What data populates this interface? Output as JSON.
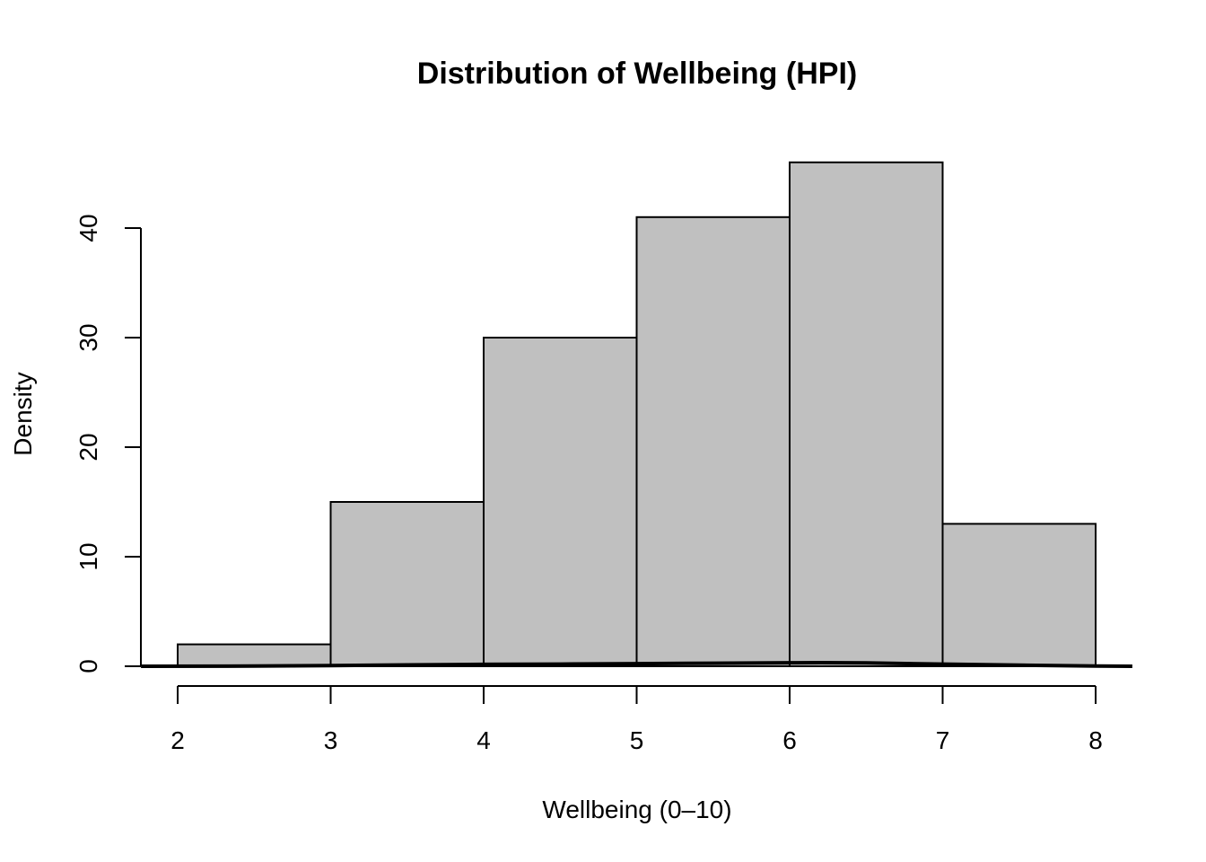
{
  "chart_data": {
    "type": "bar",
    "title": "Distribution of Wellbeing (HPI)",
    "xlabel": "Wellbeing (0–10)",
    "ylabel": "Density",
    "bins": [
      {
        "from": 2,
        "to": 3,
        "value": 2
      },
      {
        "from": 3,
        "to": 4,
        "value": 15
      },
      {
        "from": 4,
        "to": 5,
        "value": 30
      },
      {
        "from": 5,
        "to": 6,
        "value": 41
      },
      {
        "from": 6,
        "to": 7,
        "value": 46
      },
      {
        "from": 7,
        "to": 8,
        "value": 13
      }
    ],
    "x_ticks": [
      "2",
      "3",
      "4",
      "5",
      "6",
      "7",
      "8"
    ],
    "y_ticks": [
      "0",
      "10",
      "20",
      "30",
      "40"
    ],
    "xlim": [
      1.76,
      8.24
    ],
    "ylim": [
      0,
      46
    ],
    "bar_fill": "#c0c0c0",
    "bar_stroke": "#000000",
    "density_curve": {
      "x": [
        1.76,
        2.5,
        3,
        3.5,
        4,
        4.5,
        5,
        5.5,
        6,
        6.2,
        6.5,
        7,
        7.5,
        8,
        8.24
      ],
      "y": [
        0.0,
        0.02,
        0.06,
        0.12,
        0.17,
        0.2,
        0.24,
        0.28,
        0.32,
        0.33,
        0.3,
        0.2,
        0.1,
        0.02,
        0.0
      ]
    },
    "grid": false,
    "legend": "none"
  }
}
